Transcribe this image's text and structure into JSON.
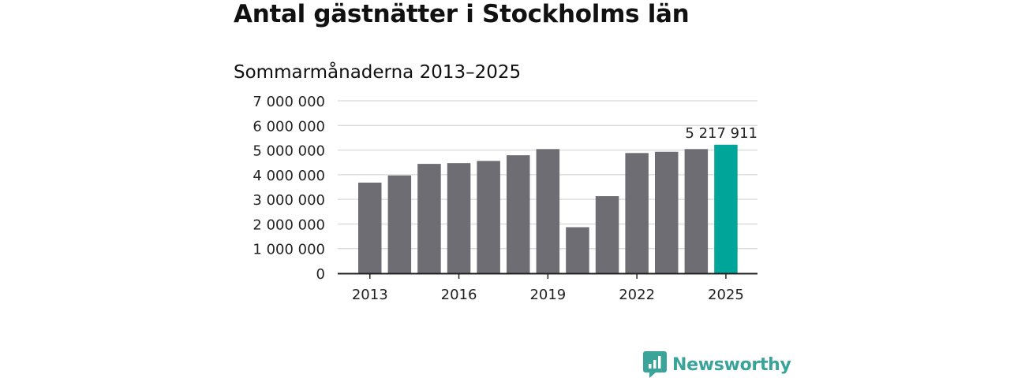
{
  "title": "Antal gästnätter i Stockholms län",
  "subtitle": "Sommarmånaderna 2013–2025",
  "brand": "Newsworthy",
  "colors": {
    "bar": "#6e6d73",
    "highlight": "#00a59a",
    "grid": "#d9d9d9",
    "axis": "#222222",
    "brand": "#3aa39a"
  },
  "chart_data": {
    "type": "bar",
    "title": "Antal gästnätter i Stockholms län",
    "subtitle": "Sommarmånaderna 2013–2025",
    "xlabel": "",
    "ylabel": "",
    "categories": [
      "2013",
      "2014",
      "2015",
      "2016",
      "2017",
      "2018",
      "2019",
      "2020",
      "2021",
      "2022",
      "2023",
      "2024",
      "2025"
    ],
    "values": [
      3680000,
      3970000,
      4440000,
      4470000,
      4560000,
      4790000,
      5040000,
      1870000,
      3130000,
      4880000,
      4930000,
      5040000,
      5217911
    ],
    "x_tick_labels": [
      "2013",
      "2016",
      "2019",
      "2022",
      "2025"
    ],
    "y_tick_values": [
      0,
      1000000,
      2000000,
      3000000,
      4000000,
      5000000,
      6000000,
      7000000
    ],
    "y_tick_labels": [
      "0",
      "1 000 000",
      "2 000 000",
      "3 000 000",
      "4 000 000",
      "5 000 000",
      "6 000 000",
      "7 000 000"
    ],
    "ylim": [
      0,
      7000000
    ],
    "grid": true,
    "highlight_category": "2025",
    "annotation": {
      "category": "2025",
      "text": "5 217 911"
    },
    "legend": "none"
  }
}
